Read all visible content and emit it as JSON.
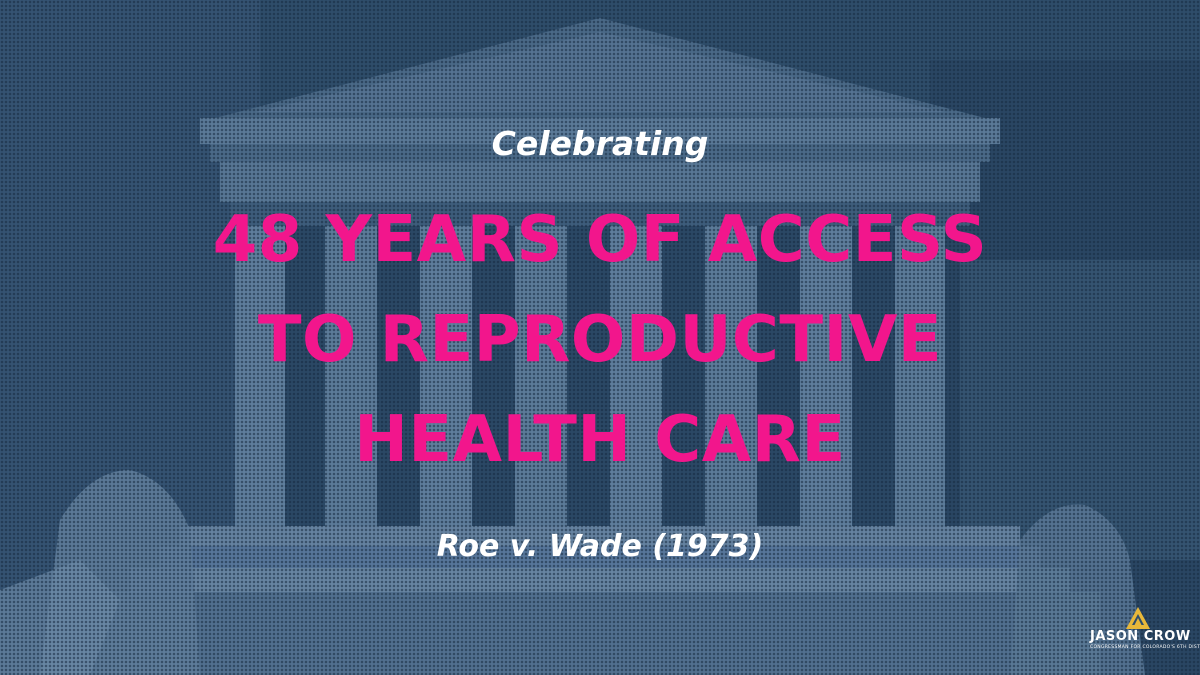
{
  "graphic": {
    "eyebrow": "Celebrating",
    "headline_lines": [
      "48 YEARS OF ACCESS",
      "TO REPRODUCTIVE",
      "HEALTH CARE"
    ],
    "caption": "Roe v. Wade (1973)"
  },
  "logo": {
    "name": "JASON CROW",
    "subtitle": "CONGRESSMAN FOR COLORADO'S 6TH DISTRICT",
    "mark_icon": "mountain-triangle-icon"
  },
  "colors": {
    "background": "#2f4d6a",
    "headline": "#f2168c",
    "text": "#ffffff",
    "logo_accent": "#e8b83a"
  }
}
